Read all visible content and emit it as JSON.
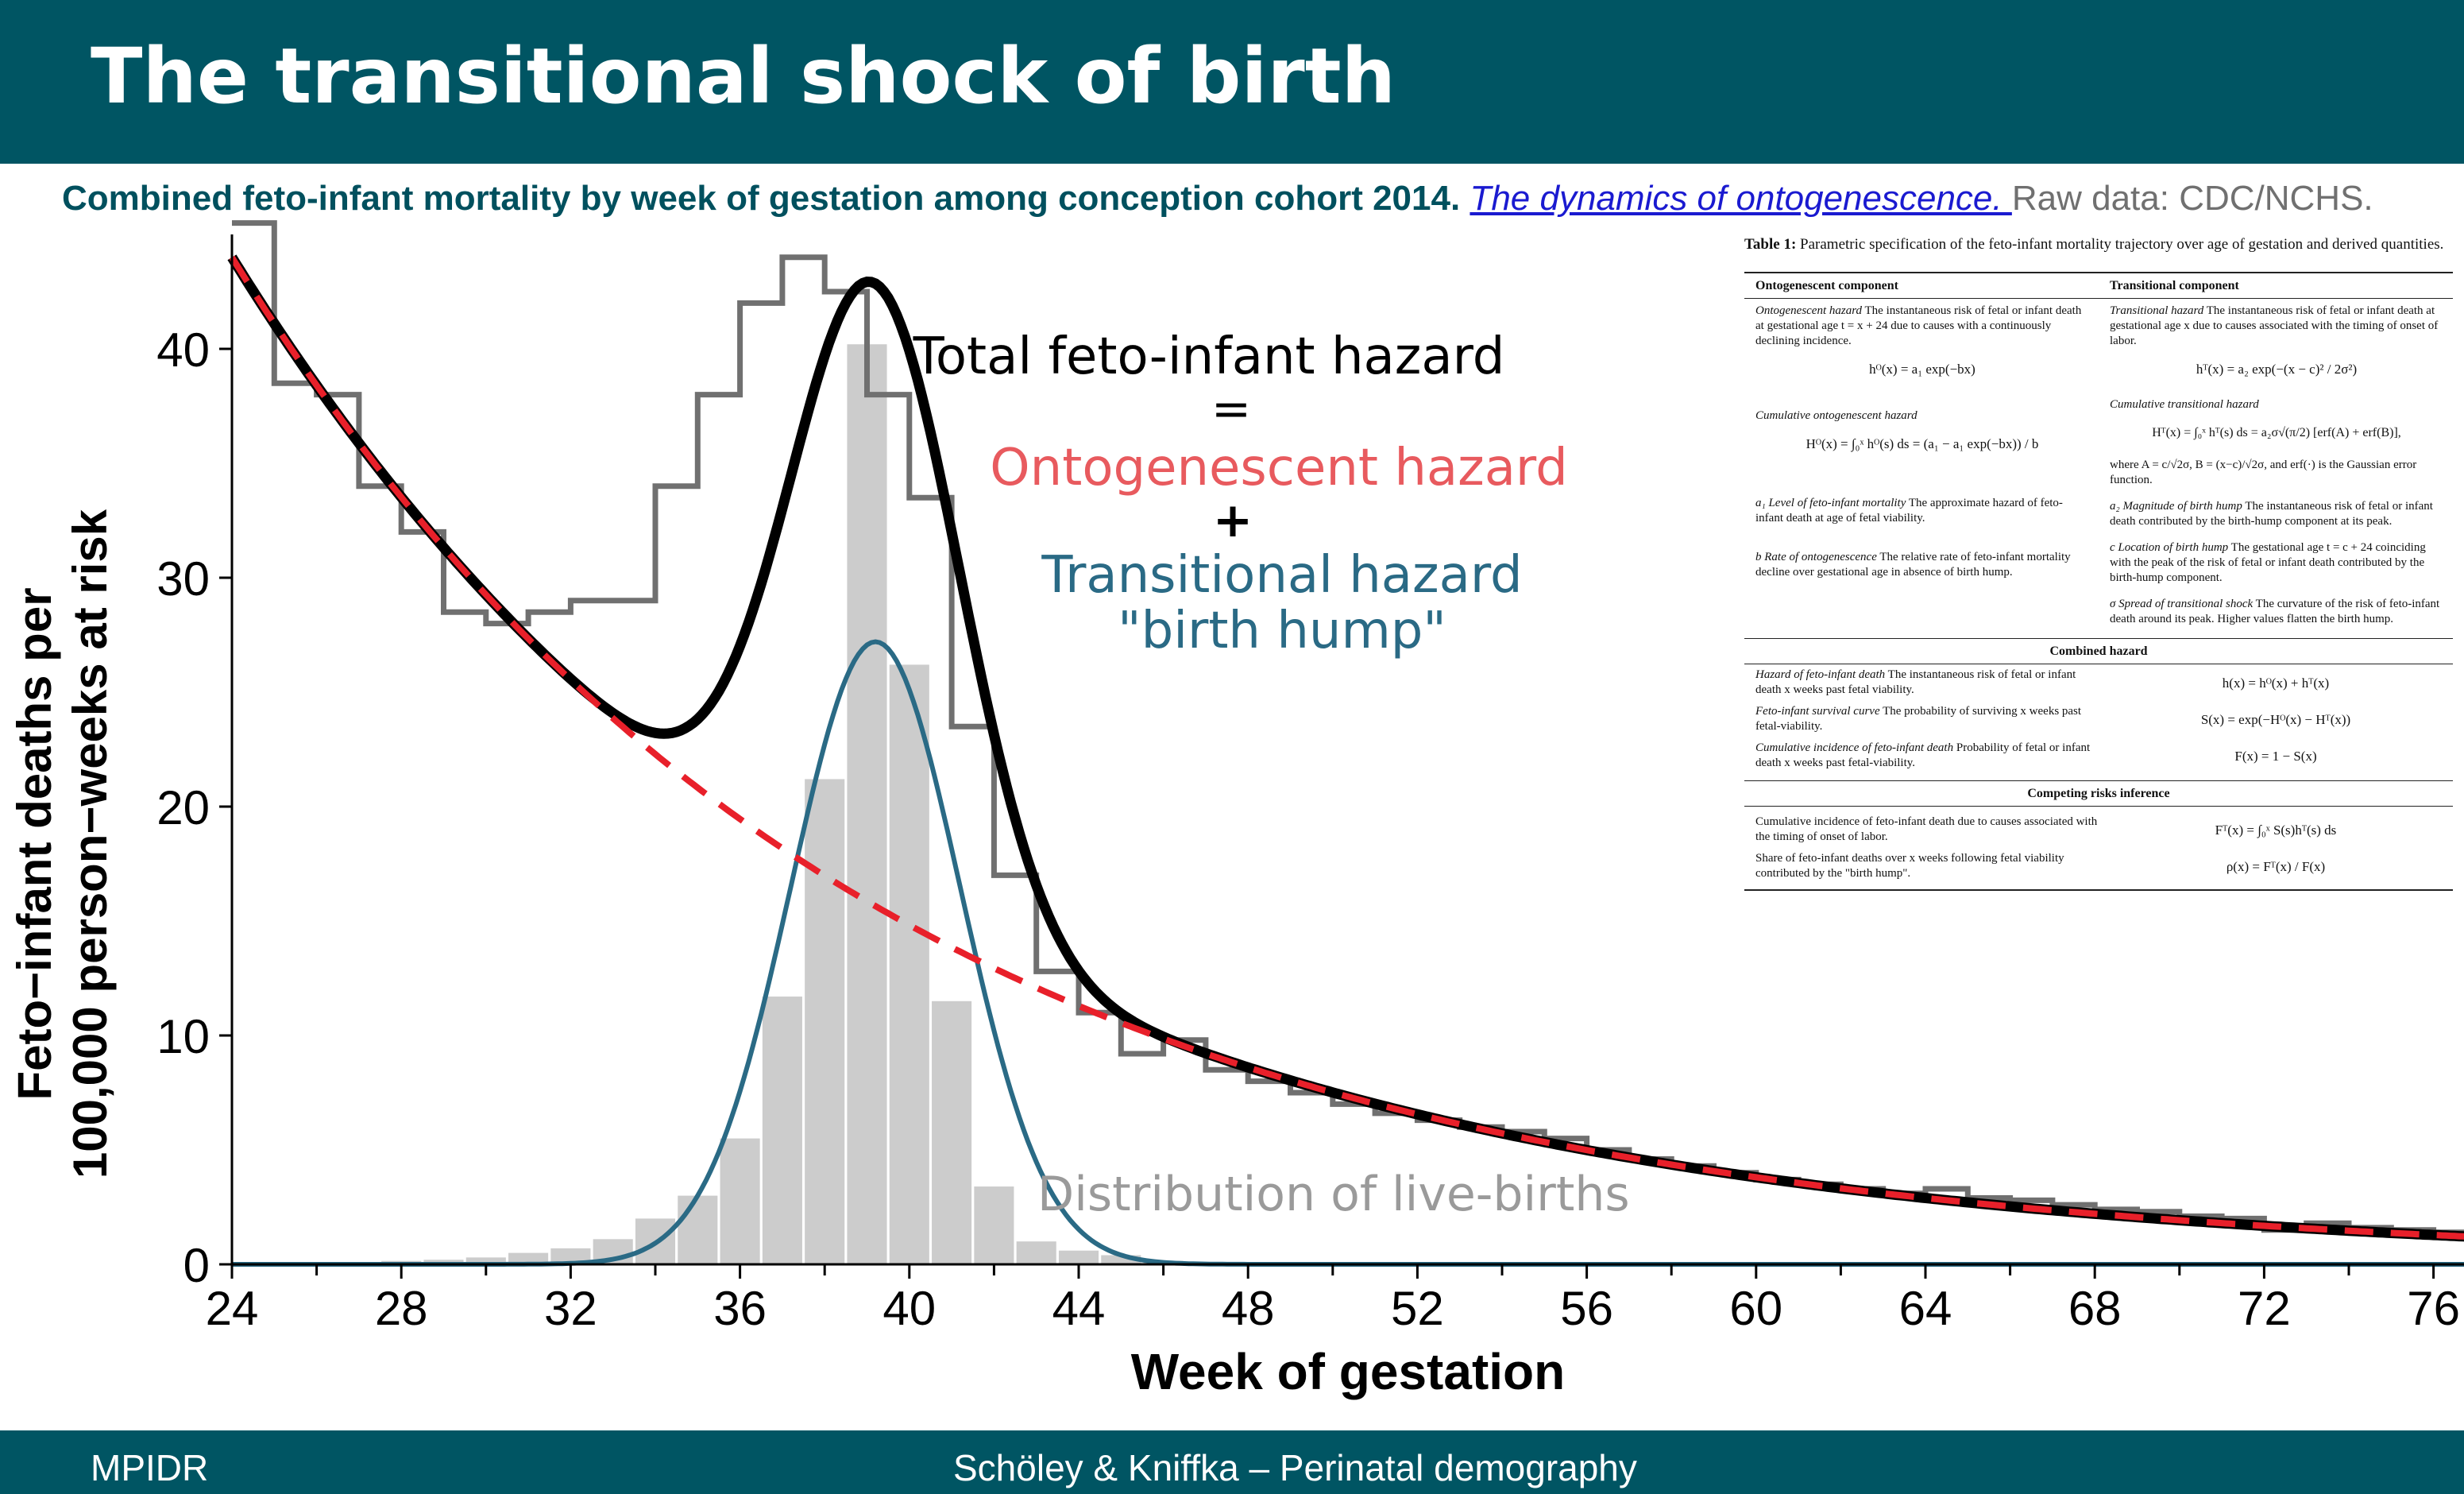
{
  "slide": {
    "title": "The transitional shock of birth",
    "subtitle_bold": "Combined feto-infant mortality by week of gestation among conception cohort 2014",
    "subtitle_dot": ".",
    "subtitle_link": "The dynamics of ontogenescence. ",
    "subtitle_raw": "Raw data: CDC/NCHS.",
    "footer_left": "MPIDR",
    "footer_center": "Schöley & Kniffka – Perinatal demography"
  },
  "colors": {
    "header_bg": "#005563",
    "ontogenescent": "#e8202a",
    "transitional": "#2a6a85",
    "total": "#000000",
    "step": "#707070",
    "births": "#cccccc"
  },
  "annotations": {
    "total_line1": "Total feto-infant hazard",
    "eq": "=",
    "onto": "Ontogenescent hazard",
    "plus": "+",
    "trans_line1": "Transitional hazard",
    "trans_line2": "\"birth hump\"",
    "births": "Distribution of live-births"
  },
  "chart_data": {
    "type": "line",
    "xlabel": "Week of gestation",
    "ylabel_line1": "Feto−infant deaths per",
    "ylabel_line2": "100,000 person−weeks at risk",
    "xlim": [
      24,
      77
    ],
    "ylim": [
      0,
      45
    ],
    "xticks": [
      "24",
      "28",
      "32",
      "36",
      "40",
      "44",
      "48",
      "52",
      "56",
      "60",
      "64",
      "68",
      "72",
      "76"
    ],
    "yticks": [
      "0",
      "10",
      "20",
      "30",
      "40"
    ],
    "grid": false,
    "observed_step": {
      "name": "Observed hazard",
      "x": [
        24,
        25,
        26,
        27,
        28,
        29,
        30,
        31,
        32,
        33,
        34,
        35,
        36,
        37,
        38,
        39,
        40,
        41,
        42,
        43,
        44,
        45,
        46,
        47,
        48,
        49,
        50,
        51,
        52,
        53,
        54,
        55,
        56,
        57,
        58,
        59,
        60,
        61,
        62,
        63,
        64,
        65,
        66,
        67,
        68,
        69,
        70,
        71,
        72,
        73,
        74,
        75,
        76,
        77
      ],
      "y": [
        45.5,
        38.5,
        38.0,
        34.0,
        32.0,
        28.5,
        28.0,
        28.5,
        29.0,
        29.0,
        34.0,
        38.0,
        42.0,
        44.0,
        42.5,
        38.0,
        33.5,
        23.5,
        17.0,
        12.8,
        11.0,
        9.2,
        9.8,
        8.5,
        8.0,
        7.5,
        7.0,
        6.6,
        6.3,
        6.0,
        5.8,
        5.5,
        5.0,
        4.6,
        4.3,
        4.0,
        3.7,
        3.5,
        3.3,
        3.1,
        3.3,
        2.9,
        2.8,
        2.6,
        2.4,
        2.3,
        2.1,
        2.0,
        1.5,
        1.8,
        1.6,
        1.5,
        1.4,
        1.3
      ]
    },
    "births_bars": {
      "name": "Distribution of live-births",
      "x": [
        26,
        27,
        28,
        29,
        30,
        31,
        32,
        33,
        34,
        35,
        36,
        37,
        38,
        39,
        40,
        41,
        42,
        43,
        44,
        45,
        46
      ],
      "y": [
        0.05,
        0.1,
        0.15,
        0.2,
        0.3,
        0.5,
        0.7,
        1.1,
        2.0,
        3.0,
        5.5,
        11.7,
        21.2,
        40.2,
        26.2,
        11.5,
        3.4,
        1.0,
        0.6,
        0.4,
        0.15
      ]
    },
    "ontogenescent": {
      "name": "Ontogenescent hazard",
      "a1": 44.0,
      "b": 0.068
    },
    "transitional": {
      "name": "Transitional hazard",
      "a2": 27.2,
      "c": 39.2,
      "sigma": 2.0
    }
  },
  "table1": {
    "caption_label": "Table 1:",
    "caption_text": "Parametric specification of the feto-infant mortality trajectory over age of gestation and derived quantities.",
    "head_left": "Ontogenescent component",
    "head_right": "Transitional component",
    "onto_hazard_title": "Ontogenescent hazard",
    "onto_hazard_text": "The instantaneous risk of fetal or infant death at gestational age t = x + 24 due to causes with a continuously declining incidence.",
    "onto_hazard_eq": "hᴼ(x) = a₁ exp(−bx)",
    "trans_hazard_title": "Transitional hazard",
    "trans_hazard_text": "The instantaneous risk of fetal or infant death at gestational age x due to causes associated with the timing of onset of labor.",
    "trans_hazard_eq": "hᵀ(x) = a₂ exp(−(x − c)² / 2σ²)",
    "cum_onto_title": "Cumulative ontogenescent hazard",
    "cum_onto_eq": "Hᴼ(x) = ∫₀ˣ hᴼ(s) ds = (a₁ − a₁ exp(−bx)) / b",
    "cum_trans_title": "Cumulative transitional hazard",
    "cum_trans_eq": "Hᵀ(x) = ∫₀ˣ hᵀ(s) ds = a₂σ√(π/2) [erf(A) + erf(B)],",
    "cum_trans_where": "where A = c/√2σ, B = (x−c)/√2σ, and erf(·) is the Gaussian error function.",
    "a1_title": "a₁ Level of feto-infant mortality",
    "a1_text": "The approximate hazard of feto-infant death at age of fetal viability.",
    "a2_title": "a₂ Magnitude of birth hump",
    "a2_text": "The instantaneous risk of fetal or infant death contributed by the birth-hump component at its peak.",
    "b_title": "b Rate of ontogenescence",
    "b_text": "The relative rate of feto-infant mortality decline over gestational age in absence of birth hump.",
    "c_title": "c Location of birth hump",
    "c_text": "The gestational age t = c + 24 coinciding with the peak of the risk of fetal or infant death contributed by the birth-hump component.",
    "sigma_title": "σ Spread of transitional shock",
    "sigma_text": "The curvature of the risk of feto-infant death around its peak. Higher values flatten the birth hump.",
    "combined_head": "Combined hazard",
    "comb1_title": "Hazard of feto-infant death",
    "comb1_text": "The instantaneous risk of fetal or infant death x weeks past fetal viability.",
    "comb1_eq": "h(x) = hᴼ(x) + hᵀ(x)",
    "comb2_title": "Feto-infant survival curve",
    "comb2_text": "The probability of surviving x weeks past fetal-viability.",
    "comb2_eq": "S(x) = exp(−Hᴼ(x) − Hᵀ(x))",
    "comb3_title": "Cumulative incidence of feto-infant death",
    "comb3_text": "Probability of fetal or infant death x weeks past fetal-viability.",
    "comb3_eq": "F(x) = 1 − S(x)",
    "competing_head": "Competing risks inference",
    "comp1_text": "Cumulative incidence of feto-infant death due to causes associated with the timing of onset of labor.",
    "comp1_eq": "Fᵀ(x) = ∫₀ˣ S(s)hᵀ(s) ds",
    "comp2_text": "Share of feto-infant deaths over x weeks following fetal viability contributed by the \"birth hump\".",
    "comp2_eq": "ρ(x) = Fᵀ(x) / F(x)"
  }
}
